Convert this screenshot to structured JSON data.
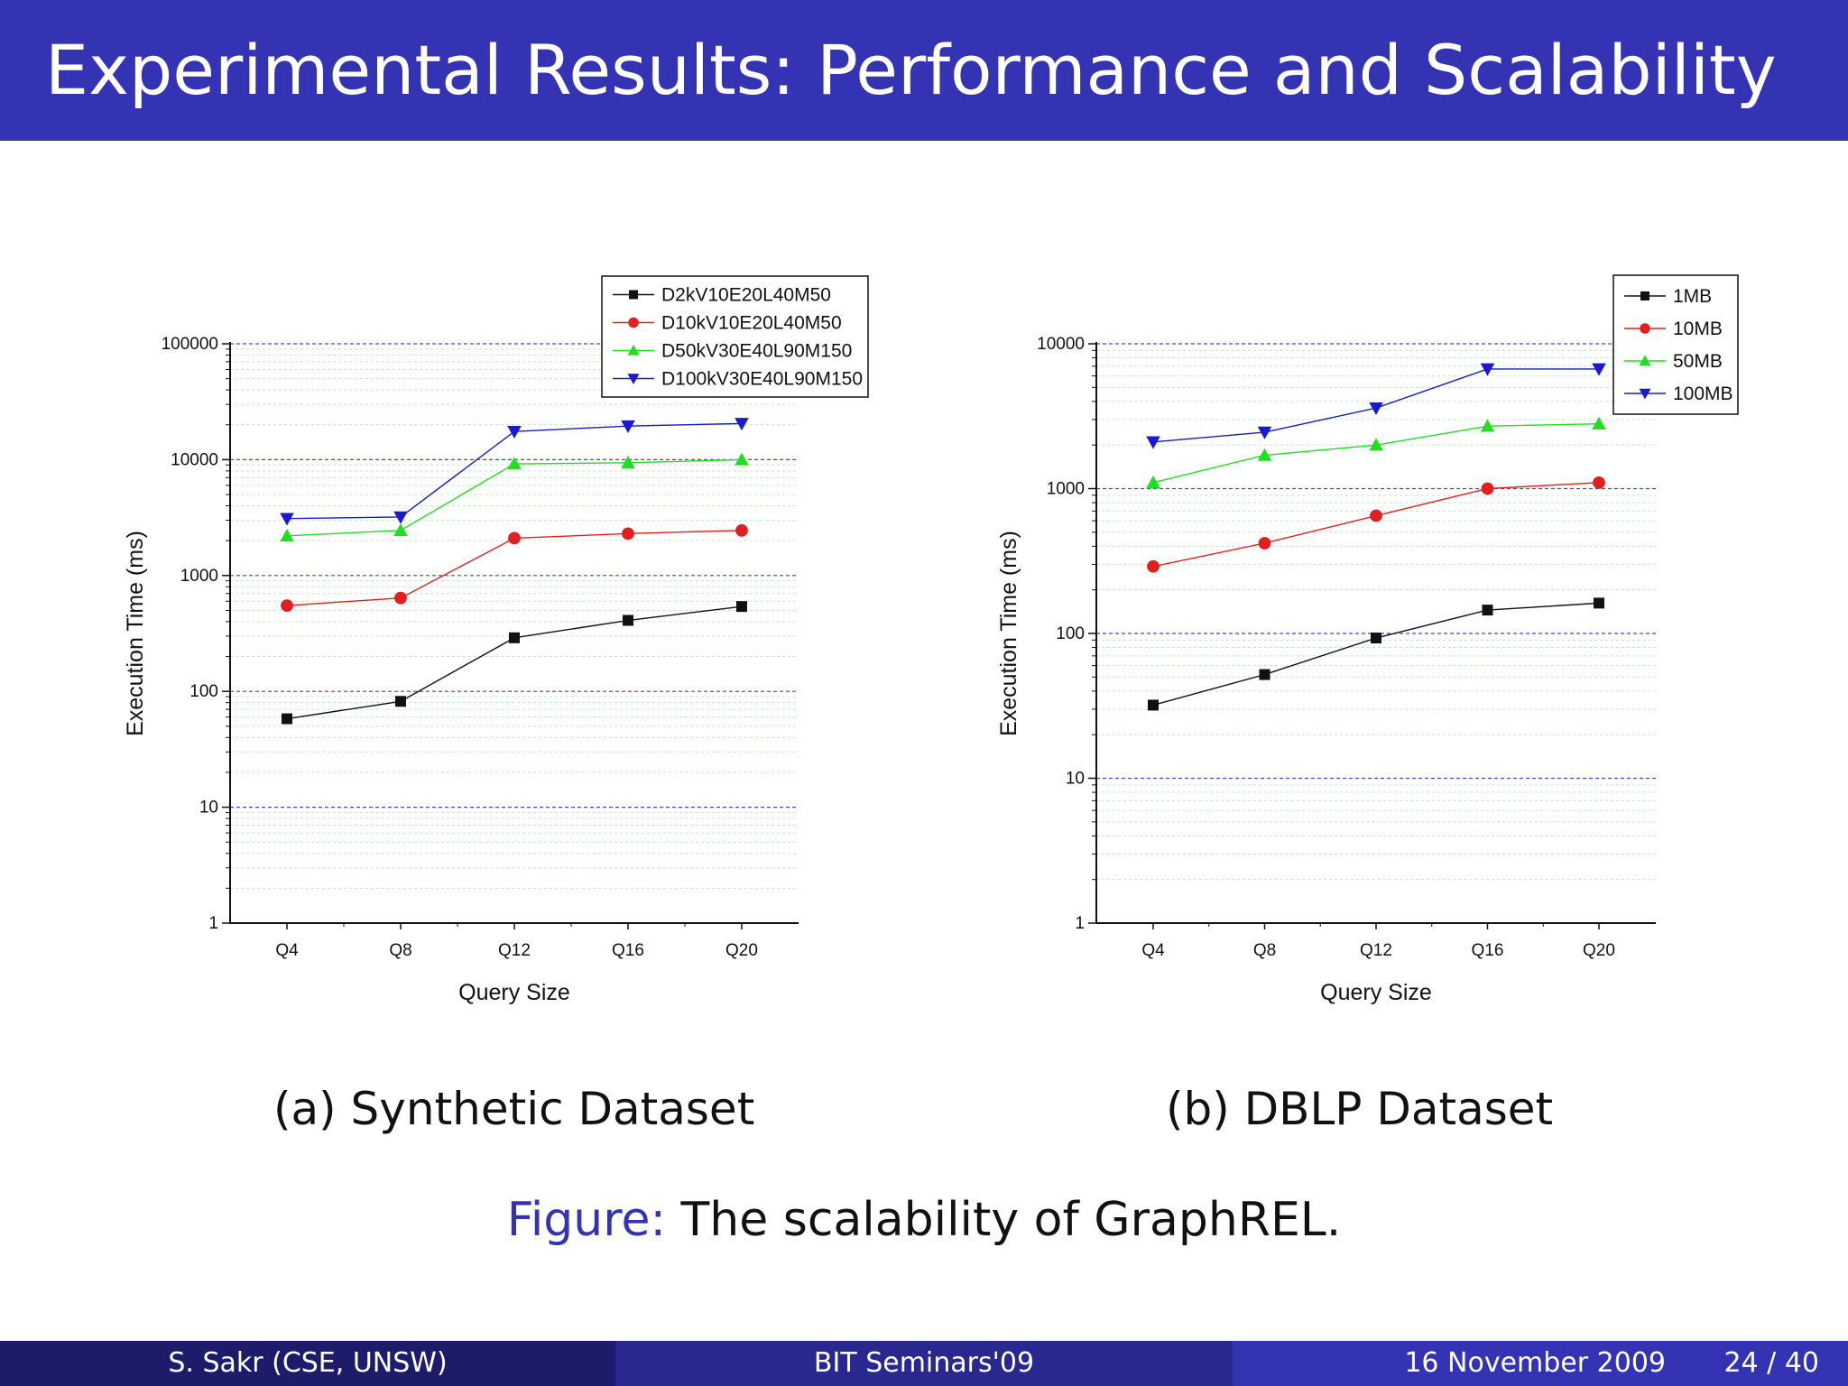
{
  "slide": {
    "title": "Experimental Results: Performance and Scalability",
    "subcaption_a": "(a) Synthetic Dataset",
    "subcaption_b": "(b) DBLP Dataset",
    "figure_label": "Figure:",
    "figure_caption": "The scalability of GraphREL."
  },
  "footer": {
    "author": "S. Sakr  (CSE, UNSW)",
    "event": "BIT Seminars'09",
    "date": "16 November 2009",
    "page": "24 / 40"
  },
  "chart_data": [
    {
      "type": "line",
      "xlabel": "Query Size",
      "ylabel": "Execution Time (ms)",
      "yscale": "log",
      "ylim": [
        1,
        100000
      ],
      "yticks": [
        "1",
        "10",
        "100",
        "1000",
        "10000",
        "100000"
      ],
      "grid": true,
      "legend_position": "top-right",
      "categories": [
        "Q4",
        "Q8",
        "Q12",
        "Q16",
        "Q20"
      ],
      "series": [
        {
          "name": "D2kV10E20L40M50",
          "color": "#111111",
          "marker": "square",
          "values": [
            58,
            82,
            290,
            410,
            540
          ]
        },
        {
          "name": "D10kV10E20L40M50",
          "color": "#e02020",
          "marker": "circle",
          "values": [
            550,
            640,
            2100,
            2300,
            2450
          ]
        },
        {
          "name": "D50kV30E40L90M150",
          "color": "#22dd22",
          "marker": "triangle-up",
          "values": [
            2200,
            2450,
            9200,
            9400,
            10000
          ]
        },
        {
          "name": "D100kV30E40L90M150",
          "color": "#1a1acc",
          "marker": "triangle-down",
          "values": [
            3100,
            3200,
            17500,
            19500,
            20500
          ]
        }
      ]
    },
    {
      "type": "line",
      "xlabel": "Query Size",
      "ylabel": "Execution Time (ms)",
      "yscale": "log",
      "ylim": [
        1,
        10000
      ],
      "yticks": [
        "1",
        "10",
        "100",
        "1000",
        "10000"
      ],
      "grid": true,
      "legend_position": "top-right",
      "categories": [
        "Q4",
        "Q8",
        "Q12",
        "Q16",
        "Q20"
      ],
      "series": [
        {
          "name": "1MB",
          "color": "#111111",
          "marker": "square",
          "values": [
            32,
            52,
            93,
            145,
            162
          ]
        },
        {
          "name": "10MB",
          "color": "#e02020",
          "marker": "circle",
          "values": [
            290,
            420,
            650,
            1000,
            1100
          ]
        },
        {
          "name": "50MB",
          "color": "#22dd22",
          "marker": "triangle-up",
          "values": [
            1100,
            1700,
            2000,
            2700,
            2800
          ]
        },
        {
          "name": "100MB",
          "color": "#1a1acc",
          "marker": "triangle-down",
          "values": [
            2100,
            2450,
            3600,
            6700,
            6700
          ]
        }
      ]
    }
  ]
}
